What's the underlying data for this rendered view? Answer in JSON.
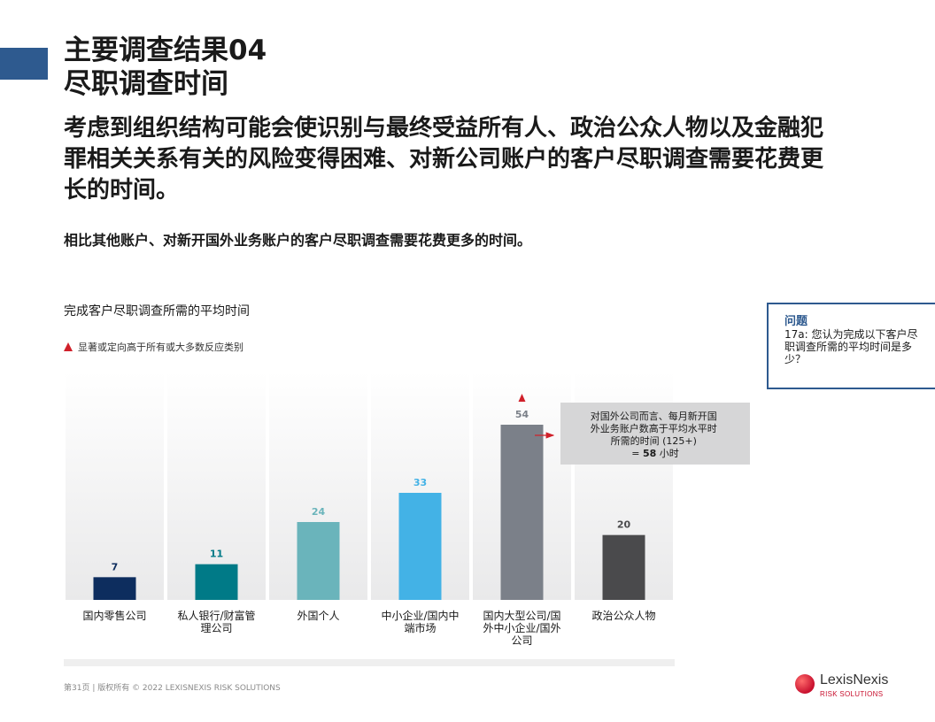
{
  "header": {
    "title_line1": "主要调查结果04",
    "title_line2": "尽职调查时间",
    "headline": "考虑到组织结构可能会使识别与最终受益所有人、政治公众人物以及金融犯罪相关关系有关的风险变得困难、对新公司账户的客户尽职调查需要花费更长的时间。",
    "subtitle": "相比其他账户、对新开国外业务账户的客户尽职调查需要花费更多的时间。"
  },
  "question": {
    "heading": "问题",
    "text": "17a: 您认为完成以下客户尽职调查所需的平均时间是多少？"
  },
  "legend": {
    "label": "显著或定向高于所有或大多数反应类别"
  },
  "callout": {
    "lines": [
      "对国外公司而言、每月新开国",
      "外业务账户数高于平均水平时",
      "所需的时间 (125+)"
    ],
    "value_prefix": "= ",
    "value": "58",
    "value_suffix": " 小时"
  },
  "footer": {
    "text": "第31页 |   版权所有 © 2022 LEXISNEXIS RISK SOLUTIONS"
  },
  "logo": {
    "name": "LexisNexis",
    "sub": "RISK SOLUTIONS"
  },
  "chart_data": {
    "type": "bar",
    "title": "完成客户尽职调查所需的平均时间",
    "categories": [
      [
        "国内零售公司"
      ],
      [
        "私人银行/财富管",
        "理公司"
      ],
      [
        "外国个人"
      ],
      [
        "中小企业/国内中",
        "端市场"
      ],
      [
        "国内大型公司/国",
        "外中小企业/国外",
        "公司"
      ],
      [
        "政治公众人物"
      ]
    ],
    "values": [
      7,
      11,
      24,
      33,
      54,
      20
    ],
    "colors": [
      "#0d2d5e",
      "#007a87",
      "#6ab4bb",
      "#43b2e6",
      "#7b8089",
      "#4a4a4c"
    ],
    "label_colors": [
      "#0d2d5e",
      "#007a87",
      "#6ab4bb",
      "#43b2e6",
      "#7b8089",
      "#4a4a4c"
    ],
    "significant": [
      false,
      false,
      false,
      false,
      true,
      false
    ],
    "ylim": [
      0,
      60
    ]
  }
}
